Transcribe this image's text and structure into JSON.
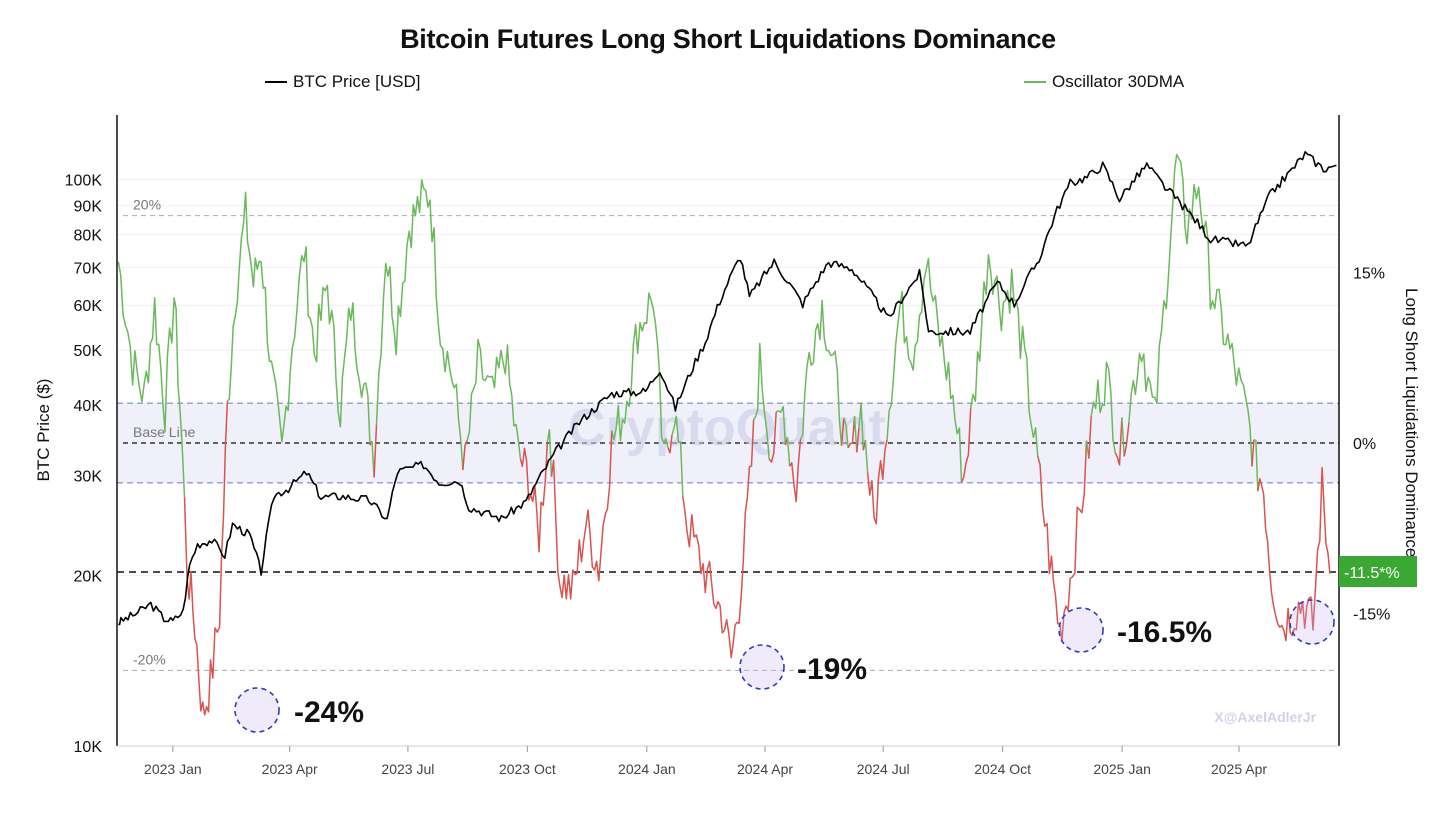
{
  "chart_data": {
    "type": "line",
    "title": "Bitcoin Futures Long Short Liquidations Dominance",
    "ylabel_left": "BTC Price ($)",
    "ylabel_right": "Long Short Liquidations Dominance",
    "left_axis": {
      "scale": "log",
      "ylim": [
        10000,
        130000
      ],
      "ticks": [
        {
          "v": 10000,
          "label": "10K"
        },
        {
          "v": 20000,
          "label": "20K"
        },
        {
          "v": 30000,
          "label": "30K"
        },
        {
          "v": 40000,
          "label": "40K"
        },
        {
          "v": 50000,
          "label": "50K"
        },
        {
          "v": 60000,
          "label": "60K"
        },
        {
          "v": 70000,
          "label": "70K"
        },
        {
          "v": 80000,
          "label": "80K"
        },
        {
          "v": 90000,
          "label": "90K"
        },
        {
          "v": 100000,
          "label": "100K"
        }
      ]
    },
    "right_axis": {
      "ticks": [
        {
          "v": 15,
          "label": "15%"
        },
        {
          "v": 0,
          "label": "0%"
        },
        {
          "v": -15,
          "label": "-15%"
        }
      ]
    },
    "x_ticks": [
      "2023 Jan",
      "2023 Apr",
      "2023 Jul",
      "2023 Oct",
      "2024 Jan",
      "2024 Apr",
      "2024 Jul",
      "2024 Oct",
      "2025 Jan",
      "2025 Apr"
    ],
    "x_range_months": [
      "2022-11",
      "2025-06"
    ],
    "reference_lines": [
      {
        "label": "20%",
        "value": 20
      },
      {
        "label": "Base Line",
        "value": 0
      },
      {
        "label": "-20%",
        "value": -20
      }
    ],
    "band": [
      -3.5,
      3.5
    ],
    "current_value_label": "-11.5*%",
    "annotations": [
      {
        "text": "-24%",
        "date": "2023-01"
      },
      {
        "text": "-19%",
        "date": "2024-03"
      },
      {
        "text": "-16.5%",
        "date": "2024-11"
      }
    ],
    "series": [
      {
        "name": "BTC Price [USD]",
        "color": "#000000",
        "axis": "left",
        "points": [
          [
            "2022-11-20",
            16500
          ],
          [
            "2022-11-22",
            16600
          ],
          [
            "2022-12-03",
            17100
          ],
          [
            "2022-12-15",
            17800
          ],
          [
            "2022-12-25",
            16800
          ],
          [
            "2023-01-01",
            16600
          ],
          [
            "2023-01-09",
            17300
          ],
          [
            "2023-01-14",
            20900
          ],
          [
            "2023-01-20",
            22700
          ],
          [
            "2023-01-31",
            23100
          ],
          [
            "2023-02-10",
            21700
          ],
          [
            "2023-02-16",
            24600
          ],
          [
            "2023-03-01",
            23600
          ],
          [
            "2023-03-10",
            20300
          ],
          [
            "2023-03-20",
            27700
          ],
          [
            "2023-03-31",
            28500
          ],
          [
            "2023-04-14",
            30400
          ],
          [
            "2023-04-25",
            27500
          ],
          [
            "2023-05-10",
            27600
          ],
          [
            "2023-06-01",
            27200
          ],
          [
            "2023-06-15",
            25100
          ],
          [
            "2023-06-23",
            30500
          ],
          [
            "2023-07-13",
            31400
          ],
          [
            "2023-07-25",
            29200
          ],
          [
            "2023-08-10",
            29400
          ],
          [
            "2023-08-17",
            26400
          ],
          [
            "2023-09-11",
            25200
          ],
          [
            "2023-09-30",
            27000
          ],
          [
            "2023-10-23",
            33100
          ],
          [
            "2023-11-10",
            37300
          ],
          [
            "2023-12-05",
            41900
          ],
          [
            "2023-12-31",
            42300
          ],
          [
            "2024-01-11",
            46300
          ],
          [
            "2024-01-23",
            39500
          ],
          [
            "2024-02-15",
            51700
          ],
          [
            "2024-02-28",
            62500
          ],
          [
            "2024-03-13",
            73100
          ],
          [
            "2024-03-20",
            62000
          ],
          [
            "2024-04-08",
            71600
          ],
          [
            "2024-04-30",
            60300
          ],
          [
            "2024-05-20",
            71400
          ],
          [
            "2024-06-07",
            69600
          ],
          [
            "2024-07-05",
            56700
          ],
          [
            "2024-07-29",
            68200
          ],
          [
            "2024-08-05",
            53900
          ],
          [
            "2024-09-06",
            53900
          ],
          [
            "2024-09-27",
            65800
          ],
          [
            "2024-10-10",
            60300
          ],
          [
            "2024-10-29",
            72300
          ],
          [
            "2024-11-12",
            88500
          ],
          [
            "2024-11-22",
            98500
          ],
          [
            "2024-12-05",
            101000
          ],
          [
            "2024-12-17",
            106000
          ],
          [
            "2024-12-30",
            92500
          ],
          [
            "2025-01-20",
            106000
          ],
          [
            "2025-02-03",
            97000
          ],
          [
            "2025-02-28",
            84000
          ],
          [
            "2025-03-10",
            78500
          ],
          [
            "2025-04-08",
            76300
          ],
          [
            "2025-04-25",
            94000
          ],
          [
            "2025-05-10",
            103000
          ],
          [
            "2025-05-22",
            111000
          ],
          [
            "2025-06-05",
            104500
          ],
          [
            "2025-06-15",
            106000
          ]
        ]
      },
      {
        "name": "Oscillator 30DMA",
        "color": "#6cb85c",
        "negative_color": "#d9534f",
        "axis": "right",
        "points": [
          [
            "2022-11-20",
            16
          ],
          [
            "2022-12-01",
            7
          ],
          [
            "2022-12-10",
            4
          ],
          [
            "2022-12-18",
            12
          ],
          [
            "2022-12-26",
            3
          ],
          [
            "2023-01-02",
            13
          ],
          [
            "2023-01-08",
            0
          ],
          [
            "2023-01-12",
            -11
          ],
          [
            "2023-01-18",
            -16
          ],
          [
            "2023-01-24",
            -24
          ],
          [
            "2023-01-30",
            -21
          ],
          [
            "2023-02-06",
            -15
          ],
          [
            "2023-02-12",
            3
          ],
          [
            "2023-02-18",
            13
          ],
          [
            "2023-02-26",
            20
          ],
          [
            "2023-03-04",
            14
          ],
          [
            "2023-03-10",
            17
          ],
          [
            "2023-03-18",
            6
          ],
          [
            "2023-03-26",
            -1
          ],
          [
            "2023-04-03",
            9
          ],
          [
            "2023-04-12",
            17
          ],
          [
            "2023-04-20",
            8
          ],
          [
            "2023-04-30",
            14
          ],
          [
            "2023-05-10",
            3
          ],
          [
            "2023-05-18",
            12
          ],
          [
            "2023-05-28",
            5
          ],
          [
            "2023-06-05",
            -1
          ],
          [
            "2023-06-14",
            17
          ],
          [
            "2023-06-22",
            10
          ],
          [
            "2023-07-02",
            19
          ],
          [
            "2023-07-10",
            21
          ],
          [
            "2023-07-18",
            22
          ],
          [
            "2023-07-26",
            10
          ],
          [
            "2023-08-04",
            6
          ],
          [
            "2023-08-14",
            -2
          ],
          [
            "2023-08-24",
            7
          ],
          [
            "2023-09-04",
            4
          ],
          [
            "2023-09-14",
            8
          ],
          [
            "2023-09-24",
            -1
          ],
          [
            "2023-10-02",
            -3
          ],
          [
            "2023-10-10",
            -8
          ],
          [
            "2023-10-18",
            2
          ],
          [
            "2023-10-26",
            -12
          ],
          [
            "2023-11-05",
            -13
          ],
          [
            "2023-11-15",
            -7
          ],
          [
            "2023-11-25",
            -11
          ],
          [
            "2023-12-05",
            0
          ],
          [
            "2023-12-15",
            3
          ],
          [
            "2023-12-25",
            10
          ],
          [
            "2024-01-06",
            13
          ],
          [
            "2024-01-14",
            -2
          ],
          [
            "2024-01-22",
            3
          ],
          [
            "2024-02-01",
            -7
          ],
          [
            "2024-02-10",
            -10
          ],
          [
            "2024-02-20",
            -13
          ],
          [
            "2024-02-28",
            -15
          ],
          [
            "2024-03-06",
            -19
          ],
          [
            "2024-03-12",
            -14
          ],
          [
            "2024-03-20",
            -4
          ],
          [
            "2024-03-28",
            7
          ],
          [
            "2024-04-06",
            -1
          ],
          [
            "2024-04-15",
            3
          ],
          [
            "2024-04-25",
            -4
          ],
          [
            "2024-05-05",
            8
          ],
          [
            "2024-05-15",
            12
          ],
          [
            "2024-05-25",
            6
          ],
          [
            "2024-06-04",
            -2
          ],
          [
            "2024-06-14",
            3
          ],
          [
            "2024-06-24",
            -7
          ],
          [
            "2024-07-04",
            2
          ],
          [
            "2024-07-14",
            12
          ],
          [
            "2024-07-24",
            8
          ],
          [
            "2024-08-03",
            16
          ],
          [
            "2024-08-12",
            10
          ],
          [
            "2024-08-22",
            5
          ],
          [
            "2024-09-01",
            -3
          ],
          [
            "2024-09-10",
            5
          ],
          [
            "2024-09-20",
            17
          ],
          [
            "2024-09-30",
            12
          ],
          [
            "2024-10-08",
            14
          ],
          [
            "2024-10-18",
            7
          ],
          [
            "2024-10-28",
            -2
          ],
          [
            "2024-11-06",
            -10
          ],
          [
            "2024-11-14",
            -16.5
          ],
          [
            "2024-11-22",
            -12
          ],
          [
            "2024-12-01",
            -5
          ],
          [
            "2024-12-10",
            3
          ],
          [
            "2024-12-20",
            6
          ],
          [
            "2024-12-30",
            -1
          ],
          [
            "2025-01-08",
            4
          ],
          [
            "2025-01-16",
            9
          ],
          [
            "2025-01-26",
            2
          ],
          [
            "2025-02-04",
            14
          ],
          [
            "2025-02-12",
            25
          ],
          [
            "2025-02-20",
            19
          ],
          [
            "2025-03-01",
            23
          ],
          [
            "2025-03-10",
            14
          ],
          [
            "2025-03-20",
            10
          ],
          [
            "2025-03-30",
            6
          ],
          [
            "2025-04-08",
            2
          ],
          [
            "2025-04-14",
            -2
          ],
          [
            "2025-04-20",
            -4
          ],
          [
            "2025-04-26",
            -12
          ],
          [
            "2025-05-04",
            -16
          ],
          [
            "2025-05-12",
            -15
          ],
          [
            "2025-05-20",
            -14
          ],
          [
            "2025-05-28",
            -16
          ],
          [
            "2025-06-04",
            -4
          ],
          [
            "2025-06-10",
            -11.5
          ]
        ]
      }
    ]
  },
  "credit": "X@AxelAdlerJr",
  "watermark": "CryptoQuant"
}
